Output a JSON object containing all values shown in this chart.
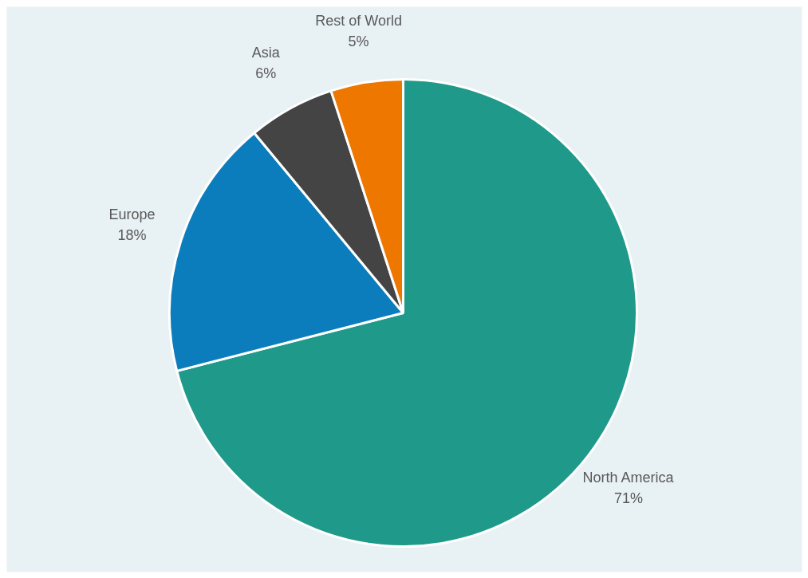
{
  "chart_data": {
    "type": "pie",
    "categories": [
      "North America",
      "Europe",
      "Asia",
      "Rest of World"
    ],
    "values": [
      71,
      18,
      6,
      5
    ],
    "colors": [
      "#1f9a8a",
      "#0b7dbd",
      "#444444",
      "#ee7700"
    ],
    "value_labels": [
      "71%",
      "18%",
      "6%",
      "5%"
    ],
    "data_labels": true,
    "legend": false
  }
}
